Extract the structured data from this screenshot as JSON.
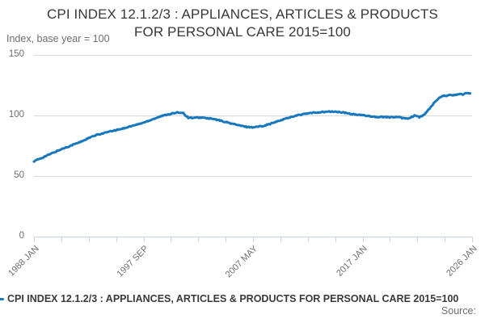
{
  "title": {
    "line1": "CPI INDEX 12.1.2/3 : APPLIANCES, ARTICLES & PRODUCTS",
    "line2": "FOR PERSONAL CARE 2015=100"
  },
  "source_label": "Source:",
  "colors": {
    "line": "#1878be",
    "gridline": "#d9d9d9",
    "axis": "#c9d3e3",
    "title_text": "#383838",
    "muted_text": "#6e6e6e",
    "legend_text": "#3a3a3a"
  },
  "chart_data": {
    "type": "line",
    "title": "CPI INDEX 12.1.2/3 : APPLIANCES, ARTICLES & PRODUCTS FOR PERSONAL CARE 2015=100",
    "ylabel": "Index, base year = 100",
    "ylim": [
      0,
      150
    ],
    "y_ticks": [
      150,
      100,
      50,
      0
    ],
    "x_tick_labels": [
      "1988 JAN",
      "1997 SEP",
      "2007 MAY",
      "2017 JAN",
      "2026 JAN"
    ],
    "x_minor_ticks_between_labels": 3,
    "x_range_years": [
      1988.0,
      2026.083
    ],
    "grid": "horizontal-only",
    "legend_position": "bottom-left",
    "series": [
      {
        "name": "CPI INDEX 12.1.2/3 : APPLIANCES, ARTICLES & PRODUCTS FOR PERSONAL CARE 2015=100",
        "color": "#1878be",
        "x": [
          1988.0,
          1988.5,
          1989.0,
          1989.5,
          1990.0,
          1990.5,
          1991.0,
          1991.5,
          1992.0,
          1992.5,
          1993.0,
          1993.5,
          1994.0,
          1994.5,
          1995.0,
          1995.5,
          1996.0,
          1996.5,
          1997.0,
          1997.5,
          1998.0,
          1998.5,
          1999.0,
          1999.5,
          2000.0,
          2000.5,
          2000.75,
          2001.0,
          2001.17,
          2001.42,
          2002.0,
          2002.5,
          2003.0,
          2003.5,
          2004.0,
          2004.5,
          2005.0,
          2005.5,
          2006.0,
          2006.5,
          2007.0,
          2007.5,
          2008.0,
          2008.5,
          2009.0,
          2009.5,
          2010.0,
          2010.5,
          2011.0,
          2011.5,
          2012.0,
          2012.5,
          2013.0,
          2013.5,
          2014.0,
          2014.5,
          2015.0,
          2015.5,
          2016.0,
          2016.5,
          2017.0,
          2017.5,
          2018.0,
          2018.5,
          2019.0,
          2019.5,
          2020.0,
          2020.5,
          2020.92,
          2021.08,
          2021.33,
          2021.5,
          2021.75,
          2022.0,
          2022.25,
          2022.5,
          2022.75,
          2023.0,
          2023.25,
          2023.5,
          2023.75,
          2024.0,
          2024.25,
          2024.5,
          2024.75,
          2025.0,
          2025.25,
          2025.5,
          2025.67,
          2025.92
        ],
        "values": [
          62.3,
          64.2,
          66.4,
          68.5,
          70.6,
          72.6,
          74.4,
          76.2,
          78.0,
          80.2,
          82.3,
          84.0,
          85.3,
          86.5,
          87.6,
          88.7,
          90.0,
          91.3,
          92.6,
          94.0,
          95.8,
          97.6,
          99.2,
          100.6,
          101.6,
          102.3,
          102.5,
          102.0,
          100.2,
          98.2,
          98.0,
          98.3,
          97.8,
          97.2,
          96.2,
          95.0,
          93.8,
          92.6,
          91.4,
          90.6,
          90.3,
          90.8,
          91.6,
          93.0,
          94.5,
          96.2,
          97.8,
          99.2,
          100.3,
          101.2,
          101.9,
          102.4,
          102.8,
          103.1,
          103.2,
          102.8,
          102.2,
          101.4,
          100.7,
          100.2,
          99.8,
          99.0,
          98.6,
          98.9,
          98.4,
          98.8,
          98.0,
          97.6,
          99.0,
          100.3,
          99.2,
          98.6,
          99.5,
          101.5,
          104.0,
          107.0,
          110.0,
          112.5,
          114.5,
          115.8,
          116.4,
          116.3,
          117.0,
          116.8,
          117.3,
          117.6,
          117.4,
          118.0,
          118.2,
          118.3
        ]
      }
    ],
    "render_hints": {
      "noise_amplitude": 0.45,
      "line_width": 3
    }
  }
}
